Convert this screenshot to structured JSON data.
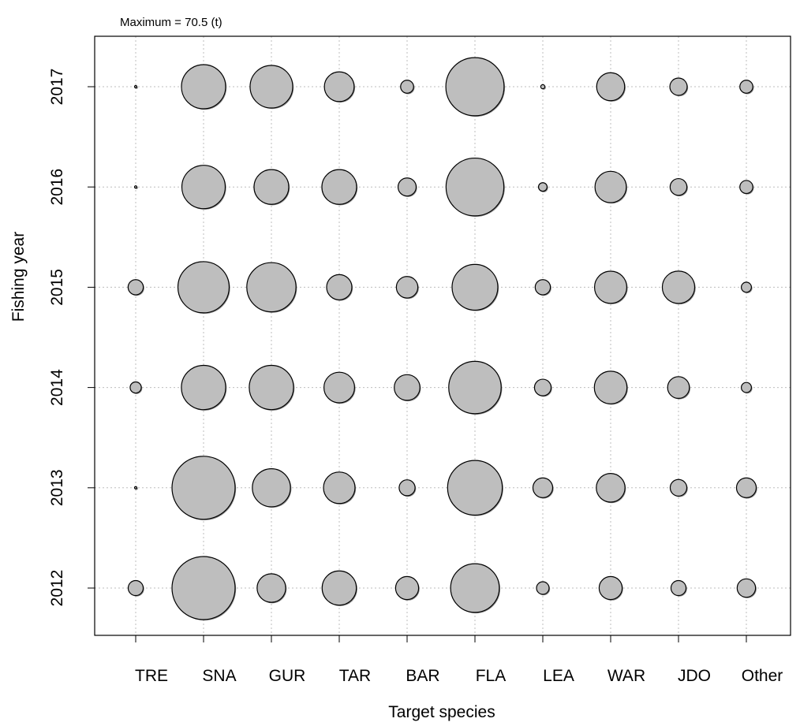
{
  "chart_data": {
    "type": "bubble",
    "annotation": "Maximum = 70.5 (t)",
    "xlabel": "Target species",
    "ylabel": "Fishing year",
    "categories": [
      "TRE",
      "SNA",
      "GUR",
      "TAR",
      "BAR",
      "FLA",
      "LEA",
      "WAR",
      "JDO",
      "Other"
    ],
    "years": [
      "2012",
      "2013",
      "2014",
      "2015",
      "2016",
      "2017"
    ],
    "grid": true,
    "max_value": 70.5,
    "colors": {
      "fill": "#bebebe",
      "stroke": "#000000",
      "grid": "#bdbdbd"
    },
    "values": [
      [
        4.0,
        70.5,
        14.5,
        20.8,
        9.4,
        42.0,
        2.8,
        9.4,
        4.0,
        6.0
      ],
      [
        0.1,
        70.5,
        25.7,
        17.6,
        4.5,
        53.0,
        6.9,
        14.6,
        4.9,
        6.9
      ],
      [
        2.2,
        34.8,
        34.8,
        16.6,
        11.7,
        48.7,
        4.9,
        18.9,
        8.4,
        1.8
      ],
      [
        4.1,
        46.5,
        42.9,
        11.3,
        8.2,
        37.1,
        4.1,
        18.4,
        18.6,
        1.8
      ],
      [
        0.1,
        33.3,
        21.4,
        21.4,
        5.8,
        59.2,
        1.3,
        17.4,
        5.0,
        3.0
      ],
      [
        0.1,
        34.6,
        32.2,
        15.7,
        3.0,
        60.0,
        0.3,
        13.9,
        5.3,
        3.0
      ]
    ]
  }
}
